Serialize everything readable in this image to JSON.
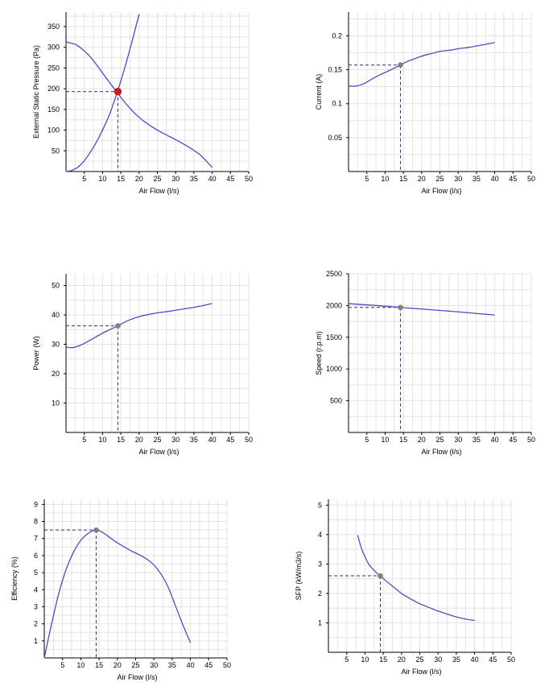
{
  "colors": {
    "curve": "#4b4bc6",
    "grid": "#e3e3e3",
    "axis": "#000000",
    "marker_gray": "#808080",
    "marker_red": "#e8141c",
    "dash": "#2d2d8c"
  },
  "chart_data": [
    {
      "id": "pressure",
      "type": "line",
      "xlabel": "Air Flow (l/s)",
      "ylabel": "External Static Pressure (Pa)",
      "xlim": [
        0,
        50
      ],
      "ylim": [
        0,
        385
      ],
      "xticks": [
        5,
        10,
        15,
        20,
        25,
        30,
        35,
        40,
        45,
        50
      ],
      "yticks": [
        50,
        100,
        150,
        200,
        250,
        300,
        350
      ],
      "grid": true,
      "series": [
        {
          "role": "fan-curve",
          "x": [
            0,
            3,
            6,
            8,
            10,
            12,
            14,
            16,
            18,
            20,
            22,
            25,
            28,
            30,
            33,
            35,
            37,
            40
          ],
          "y": [
            313,
            305,
            283,
            262,
            238,
            214,
            191,
            168,
            148,
            131,
            117,
            100,
            86,
            77,
            62,
            51,
            38,
            10
          ]
        },
        {
          "role": "system-curve",
          "x": [
            0,
            2,
            4,
            6,
            8,
            10,
            12,
            14,
            16,
            18,
            20
          ],
          "y": [
            0,
            4,
            16,
            38,
            66,
            100,
            140,
            191,
            248,
            312,
            380
          ]
        }
      ],
      "operating_point": {
        "x": 14.2,
        "y": 193
      },
      "marker": "red"
    },
    {
      "id": "current",
      "type": "line",
      "xlabel": "Air Flow (l/s)",
      "ylabel": "Current (A)",
      "xlim": [
        0,
        50
      ],
      "ylim": [
        0,
        0.235
      ],
      "xticks": [
        5,
        10,
        15,
        20,
        25,
        30,
        35,
        40,
        45,
        50
      ],
      "yticks": [
        0.05,
        0.1,
        0.15,
        0.2
      ],
      "grid": true,
      "series": [
        {
          "x": [
            0,
            2,
            4,
            6,
            8,
            10,
            12,
            14.2,
            16,
            18,
            20,
            22,
            25,
            28,
            30,
            33,
            35,
            38,
            40
          ],
          "y": [
            0.126,
            0.126,
            0.129,
            0.135,
            0.141,
            0.146,
            0.151,
            0.157,
            0.162,
            0.166,
            0.17,
            0.173,
            0.177,
            0.179,
            0.181,
            0.183,
            0.185,
            0.188,
            0.19
          ]
        }
      ],
      "operating_point": {
        "x": 14.2,
        "y": 0.157
      },
      "marker": "gray"
    },
    {
      "id": "power",
      "type": "line",
      "xlabel": "Air Flow (l/s)",
      "ylabel": "Power (W)",
      "xlim": [
        0,
        50
      ],
      "ylim": [
        0,
        54
      ],
      "xticks": [
        5,
        10,
        15,
        20,
        25,
        30,
        35,
        40,
        45,
        50
      ],
      "yticks": [
        10,
        20,
        30,
        40,
        50
      ],
      "grid": true,
      "series": [
        {
          "x": [
            0,
            2,
            4,
            6,
            8,
            10,
            12,
            14.2,
            16,
            18,
            20,
            22,
            25,
            28,
            30,
            33,
            35,
            38,
            40
          ],
          "y": [
            29,
            28.9,
            29.7,
            31,
            32.4,
            33.8,
            35,
            36.3,
            37.5,
            38.6,
            39.4,
            40,
            40.7,
            41.2,
            41.6,
            42.2,
            42.6,
            43.3,
            43.9
          ]
        }
      ],
      "operating_point": {
        "x": 14.2,
        "y": 36.3
      },
      "marker": "gray"
    },
    {
      "id": "speed",
      "type": "line",
      "xlabel": "Air Flow (l/s)",
      "ylabel": "Speed (r.p.m)",
      "xlim": [
        0,
        50
      ],
      "ylim": [
        0,
        2500
      ],
      "xticks": [
        5,
        10,
        15,
        20,
        25,
        30,
        35,
        40,
        45,
        50
      ],
      "yticks": [
        500,
        1000,
        1500,
        2000,
        2500
      ],
      "grid": true,
      "series": [
        {
          "x": [
            0,
            10,
            14.2,
            20,
            30,
            40
          ],
          "y": [
            2030,
            1990,
            1970,
            1945,
            1900,
            1850
          ]
        }
      ],
      "operating_point": {
        "x": 14.2,
        "y": 1970
      },
      "marker": "gray"
    },
    {
      "id": "efficiency",
      "type": "line",
      "xlabel": "Air Flow (l/s)",
      "ylabel": "Efficiency (%)",
      "xlim": [
        0,
        50
      ],
      "ylim": [
        0,
        9.3
      ],
      "xticks": [
        5,
        10,
        15,
        20,
        25,
        30,
        35,
        40,
        45,
        50
      ],
      "yticks": [
        1,
        2,
        3,
        4,
        5,
        6,
        7,
        8,
        9
      ],
      "grid": true,
      "series": [
        {
          "x": [
            0,
            2,
            4,
            6,
            8,
            10,
            12,
            14.2,
            16,
            18,
            20,
            22,
            24,
            26,
            28,
            30,
            32,
            34,
            36,
            38,
            40
          ],
          "y": [
            0,
            2.0,
            3.8,
            5.2,
            6.2,
            6.9,
            7.3,
            7.5,
            7.35,
            7.05,
            6.75,
            6.5,
            6.25,
            6.05,
            5.8,
            5.45,
            4.9,
            4.1,
            3.0,
            1.9,
            0.9
          ]
        }
      ],
      "operating_point": {
        "x": 14.2,
        "y": 7.5
      },
      "marker": "gray"
    },
    {
      "id": "sfp",
      "type": "line",
      "xlabel": "Air Flow (l/s)",
      "ylabel": "SFP (kW/m3/s)",
      "xlim": [
        0,
        50
      ],
      "ylim": [
        0,
        5.2
      ],
      "xticks": [
        5,
        10,
        15,
        20,
        25,
        30,
        35,
        40,
        45,
        50
      ],
      "yticks": [
        1,
        2,
        3,
        4,
        5
      ],
      "grid": true,
      "series": [
        {
          "x": [
            8,
            9,
            10,
            11,
            12,
            13,
            14.2,
            16,
            18,
            20,
            22,
            25,
            28,
            30,
            33,
            35,
            38,
            40
          ],
          "y": [
            3.98,
            3.55,
            3.25,
            3.0,
            2.85,
            2.72,
            2.6,
            2.4,
            2.2,
            2.0,
            1.85,
            1.65,
            1.5,
            1.4,
            1.28,
            1.2,
            1.12,
            1.08
          ]
        }
      ],
      "operating_point": {
        "x": 14.2,
        "y": 2.6
      },
      "marker": "gray"
    }
  ]
}
